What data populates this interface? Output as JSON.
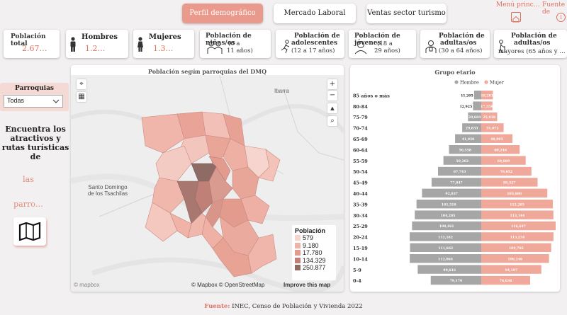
{
  "tabs": [
    {
      "label": "Perfil demográfico",
      "active": true
    },
    {
      "label": "Mercado Laboral",
      "active": false
    },
    {
      "label": "Ventas sector turismo",
      "active": false
    }
  ],
  "top_links": {
    "menu": "Menú princ…",
    "source": "Fuente de"
  },
  "kpis": {
    "total": {
      "label": "Población total",
      "value": "2.67…"
    },
    "men": {
      "label": "Hombres",
      "value": "1.2…"
    },
    "women": {
      "label": "Mujeres",
      "value": "1.3…"
    },
    "children": {
      "label": "Población de niñas/os",
      "sub1": "(0 a",
      "sub2": "11 años)"
    },
    "teens": {
      "label": "Población de",
      "label2": "adolescentes",
      "sub1": "(12 a 17 años)"
    },
    "youth": {
      "label": "Población de jóvenes",
      "sub1": "(18 a",
      "sub2": "29 años)"
    },
    "adults": {
      "label": "Población de",
      "label2": "adultas/os",
      "sub1": "(30 a 64 años)"
    },
    "seniors": {
      "label": "Población de",
      "label2": "adultas/os",
      "sub1": "mayores (65 años y …"
    }
  },
  "slicer": {
    "title": "Parroquias",
    "selected": "Todas"
  },
  "side": {
    "line1": "Encuentra los",
    "line2": "atractivos y",
    "line3": "rutas turísticas",
    "line4": "de",
    "pink1": "las",
    "pink2": "parro…"
  },
  "map": {
    "title": "Población según parroquias del DMQ",
    "place_ibarra": "Ibarra",
    "place_sto1": "Santo Domingo",
    "place_sto2": "de los Tsachilas",
    "legend_title": "Población",
    "legend": [
      {
        "label": "579",
        "color": "#f6d5cf"
      },
      {
        "label": "9.180",
        "color": "#efb3a8"
      },
      {
        "label": "17.780",
        "color": "#e49a8f"
      },
      {
        "label": "134.329",
        "color": "#c08077"
      },
      {
        "label": "250.877",
        "color": "#8f6b65"
      }
    ],
    "attribution": "© Mapbox © OpenStreetMap",
    "improve": "Improve this map",
    "logo": "© mapbox",
    "plus": "+",
    "minus": "−",
    "north": "▲"
  },
  "chart_data": {
    "type": "bar",
    "title": "Grupo etario",
    "legend": [
      "Hombre",
      "Mujer"
    ],
    "colors": {
      "Hombre": "#a6a6a6",
      "Mujer": "#efa899"
    },
    "categories": [
      "85 años o más",
      "80-84",
      "75-79",
      "70-74",
      "65-69",
      "60-64",
      "55-59",
      "50-54",
      "45-49",
      "40-44",
      "35-39",
      "30-34",
      "25-29",
      "20-24",
      "15-19",
      "10-14",
      "5-9",
      "0-4"
    ],
    "series": [
      {
        "name": "Hombre",
        "values": [
          11205,
          12925,
          20684,
          29833,
          41030,
          50558,
          59282,
          67743,
          77847,
          92837,
          101518,
          104205,
          108461,
          112182,
          111662,
          112064,
          99616,
          79170
        ]
      },
      {
        "name": "Mujer",
        "values": [
          18281,
          17559,
          25038,
          35072,
          48905,
          60246,
          69689,
          78652,
          88327,
          103600,
          112285,
          113144,
          116647,
          113234,
          109702,
          106246,
          94197,
          76636
        ]
      }
    ],
    "value_labels": {
      "Hombre": [
        "11,205",
        "12,925",
        "20,684",
        "29,833",
        "41,030",
        "50,558",
        "59,282",
        "67,743",
        "77,847",
        "92,837",
        "101,518",
        "104,205",
        "108,461",
        "112,182",
        "111,662",
        "112,064",
        "99,616",
        "79,170"
      ],
      "Mujer": [
        "18,281",
        "17,559",
        "25,038",
        "35,072",
        "48,905",
        "60,246",
        "69,689",
        "78,652",
        "88,327",
        "103,600",
        "112,285",
        "113,144",
        "116,647",
        "113,234",
        "109,702",
        "106,246",
        "94,197",
        "76,636"
      ]
    }
  },
  "footer": {
    "bold": "Fuente:",
    "text": " INEC, Censo de Población y Vivienda 2022"
  }
}
